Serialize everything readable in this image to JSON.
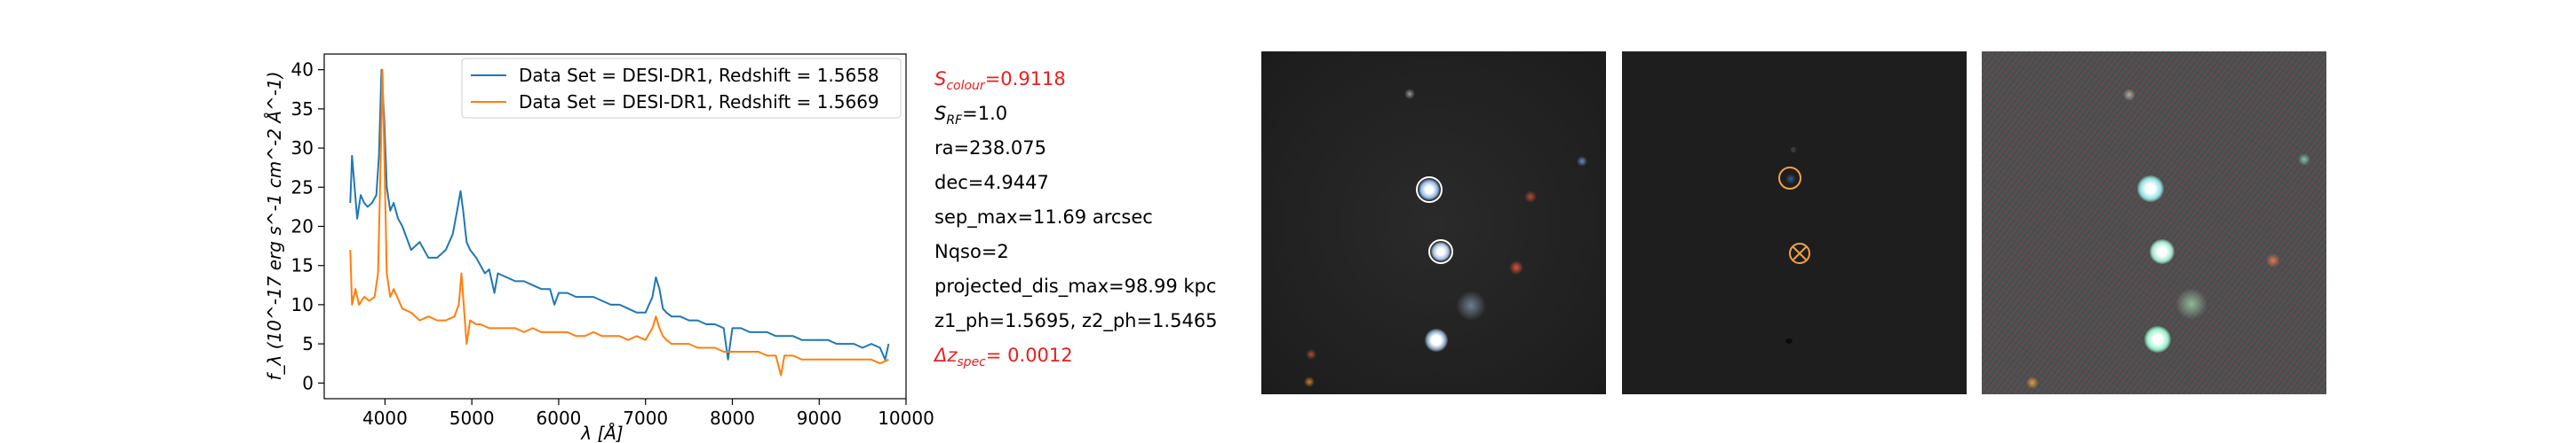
{
  "chart_data": {
    "type": "line",
    "title": "",
    "xlabel": "λ [Å]",
    "ylabel": "f_λ (10^-17 erg s^-1 cm^-2 Å^-1)",
    "xlim": [
      3300,
      10000
    ],
    "ylim": [
      -2,
      42
    ],
    "xticks": [
      4000,
      5000,
      6000,
      7000,
      8000,
      9000,
      10000
    ],
    "yticks": [
      0,
      5,
      10,
      15,
      20,
      25,
      30,
      35,
      40
    ],
    "legend_position": "top-right",
    "series": [
      {
        "name": "Data Set = DESI-DR1, Redshift = 1.5658",
        "color": "#1f77b4",
        "x": [
          3600,
          3620,
          3650,
          3680,
          3720,
          3760,
          3800,
          3850,
          3900,
          3930,
          3960,
          3990,
          4020,
          4060,
          4100,
          4150,
          4200,
          4300,
          4400,
          4500,
          4600,
          4700,
          4780,
          4830,
          4870,
          4900,
          4940,
          4980,
          5050,
          5150,
          5200,
          5260,
          5300,
          5400,
          5500,
          5600,
          5700,
          5800,
          5900,
          5950,
          6000,
          6100,
          6200,
          6300,
          6400,
          6500,
          6600,
          6700,
          6800,
          6900,
          7000,
          7080,
          7120,
          7160,
          7200,
          7240,
          7300,
          7400,
          7500,
          7600,
          7700,
          7800,
          7900,
          7950,
          8000,
          8100,
          8200,
          8300,
          8400,
          8500,
          8600,
          8700,
          8800,
          8900,
          9000,
          9100,
          9200,
          9300,
          9400,
          9500,
          9600,
          9700,
          9760,
          9800
        ],
        "y": [
          23,
          29,
          25,
          21,
          24,
          23,
          22.5,
          23,
          24,
          29,
          40,
          34,
          25,
          22,
          23,
          21,
          20,
          17,
          18,
          16,
          16,
          17,
          19,
          22,
          24.5,
          22,
          18,
          17,
          16,
          14,
          14.5,
          11.5,
          14,
          13.5,
          13,
          13,
          12.5,
          12,
          12,
          10,
          11.5,
          11.5,
          11,
          11,
          11,
          10.5,
          10,
          10,
          9.5,
          9,
          9,
          11,
          13.5,
          12,
          9.5,
          9,
          8.5,
          8.5,
          8,
          8,
          7.5,
          7.5,
          7,
          3,
          7,
          7,
          6.5,
          6.5,
          6.5,
          6,
          6,
          6,
          5.5,
          5.5,
          5.5,
          5.5,
          5,
          5,
          5,
          4.5,
          5,
          4.5,
          3,
          5
        ]
      },
      {
        "name": "Data Set = DESI-DR1, Redshift = 1.5669",
        "color": "#ff7f0e",
        "x": [
          3600,
          3620,
          3660,
          3700,
          3760,
          3820,
          3880,
          3920,
          3950,
          3970,
          3990,
          4020,
          4060,
          4100,
          4140,
          4200,
          4300,
          4400,
          4500,
          4600,
          4700,
          4800,
          4850,
          4880,
          4900,
          4940,
          4980,
          5050,
          5100,
          5200,
          5300,
          5400,
          5500,
          5600,
          5700,
          5800,
          5900,
          6000,
          6100,
          6200,
          6300,
          6400,
          6500,
          6600,
          6700,
          6800,
          6900,
          7000,
          7080,
          7120,
          7160,
          7200,
          7240,
          7300,
          7400,
          7500,
          7600,
          7700,
          7800,
          7900,
          8000,
          8100,
          8200,
          8300,
          8400,
          8500,
          8560,
          8600,
          8700,
          8800,
          8900,
          9000,
          9100,
          9200,
          9300,
          9400,
          9500,
          9600,
          9700,
          9800
        ],
        "y": [
          17,
          10,
          12,
          10,
          11,
          10.5,
          11,
          14,
          28,
          40,
          30,
          14,
          11,
          12,
          11,
          9.5,
          9,
          8,
          8.5,
          8,
          8,
          8.5,
          10,
          14,
          11,
          5,
          8,
          7.5,
          7.5,
          7,
          7,
          7,
          7,
          6.5,
          7,
          6.5,
          6.5,
          6.5,
          6.5,
          6,
          6,
          6.5,
          6,
          6,
          6,
          5.5,
          6,
          5.5,
          7,
          8.5,
          7,
          6,
          5.5,
          5,
          5,
          5,
          4.5,
          4.5,
          4.5,
          4,
          4,
          4,
          4,
          4,
          3.5,
          3.5,
          1,
          3.5,
          3.5,
          3,
          3,
          3,
          3,
          3,
          3,
          3,
          3,
          3,
          2.5,
          3
        ]
      }
    ]
  },
  "info": {
    "s_colour": "=0.9118",
    "s_rf": "=1.0",
    "ra": "ra=238.075",
    "dec": "dec=4.9447",
    "sep_max": "sep_max=11.69 arcsec",
    "nqso": "Nqso=2",
    "projected_dis_max": "projected_dis_max=98.99 kpc",
    "z_ph": "z1_ph=1.5695, z2_ph=1.5465",
    "delta_z_spec": "= 0.0012"
  }
}
